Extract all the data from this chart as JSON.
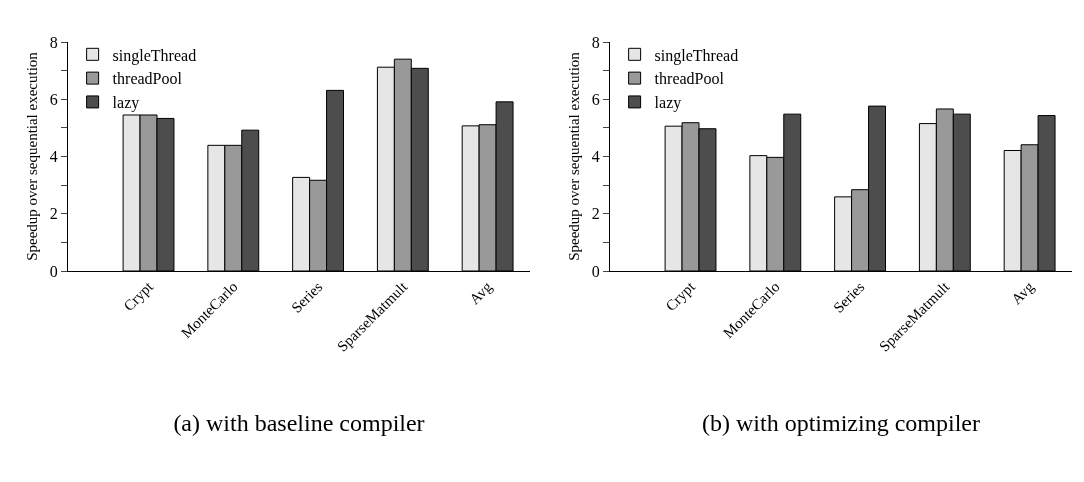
{
  "chart_data": [
    {
      "type": "bar",
      "xlabel": "(a) with baseline compiler",
      "ylabel": "Speedup over sequential execution",
      "categories": [
        "Crypt",
        "MonteCarlo",
        "Series",
        "SparseMatmult",
        "Avg"
      ],
      "series": [
        {
          "name": "singleThread",
          "color": "#e6e6e6",
          "values": [
            5.45,
            4.39,
            3.27,
            7.12,
            5.07
          ]
        },
        {
          "name": "threadPool",
          "color": "#999999",
          "values": [
            5.45,
            4.39,
            3.17,
            7.4,
            5.11
          ]
        },
        {
          "name": "lazy",
          "color": "#4d4d4d",
          "values": [
            5.33,
            4.92,
            6.31,
            7.08,
            5.91
          ]
        }
      ],
      "ylim": [
        0,
        8
      ],
      "yticks": [
        0,
        {
          "value": 1,
          "label": null
        },
        2,
        {
          "value": 3,
          "label": null
        },
        4,
        {
          "value": 5,
          "label": null
        },
        6,
        {
          "value": 7,
          "label": null
        },
        8
      ],
      "grid": false,
      "legend": "top left"
    },
    {
      "type": "bar",
      "xlabel": "(b) with optimizing compiler",
      "ylabel": "Speedup over sequential execution",
      "categories": [
        "Crypt",
        "MonteCarlo",
        "Series",
        "SparseMatmult",
        "Avg"
      ],
      "series": [
        {
          "name": "singleThread",
          "color": "#e6e6e6",
          "values": [
            5.06,
            4.03,
            2.59,
            5.15,
            4.21
          ]
        },
        {
          "name": "threadPool",
          "color": "#999999",
          "values": [
            5.18,
            3.97,
            2.84,
            5.66,
            4.41
          ]
        },
        {
          "name": "lazy",
          "color": "#4d4d4d",
          "values": [
            4.97,
            5.48,
            5.76,
            5.48,
            5.43
          ]
        }
      ],
      "ylim": [
        0,
        8
      ],
      "yticks": [
        0,
        {
          "value": 1,
          "label": null
        },
        2,
        {
          "value": 3,
          "label": null
        },
        4,
        {
          "value": 5,
          "label": null
        },
        6,
        {
          "value": 7,
          "label": null
        },
        8
      ],
      "grid": false,
      "legend": "top left"
    }
  ]
}
